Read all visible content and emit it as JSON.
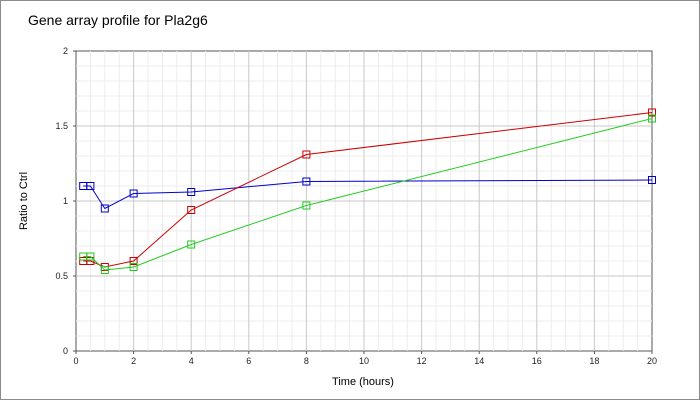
{
  "chart_data": {
    "type": "line",
    "title": "Gene array profile for Pla2g6",
    "xlabel": "Time (hours)",
    "ylabel": "Ratio to Ctrl",
    "xlim": [
      0,
      20
    ],
    "ylim": [
      0,
      2
    ],
    "xticks": [
      0,
      2,
      4,
      6,
      8,
      10,
      12,
      14,
      16,
      18,
      20
    ],
    "yticks": [
      0,
      0.5,
      1,
      1.5,
      2
    ],
    "ytick_labels": [
      "0",
      "0.5",
      "1",
      "1.5",
      "2"
    ],
    "grid": true,
    "marker": "open-square",
    "series": [
      {
        "color": "#0000cc",
        "x": [
          0.25,
          0.5,
          1,
          2,
          4,
          8,
          20
        ],
        "y": [
          1.1,
          1.1,
          0.95,
          1.05,
          1.06,
          1.13,
          1.14
        ]
      },
      {
        "color": "#cc0000",
        "x": [
          0.25,
          0.5,
          1,
          2,
          4,
          8,
          20
        ],
        "y": [
          0.6,
          0.6,
          0.56,
          0.6,
          0.94,
          1.31,
          1.59
        ]
      },
      {
        "color": "#22cc22",
        "x": [
          0.25,
          0.5,
          1,
          2,
          4,
          8,
          20
        ],
        "y": [
          0.63,
          0.63,
          0.54,
          0.56,
          0.71,
          0.97,
          1.55
        ]
      }
    ]
  }
}
